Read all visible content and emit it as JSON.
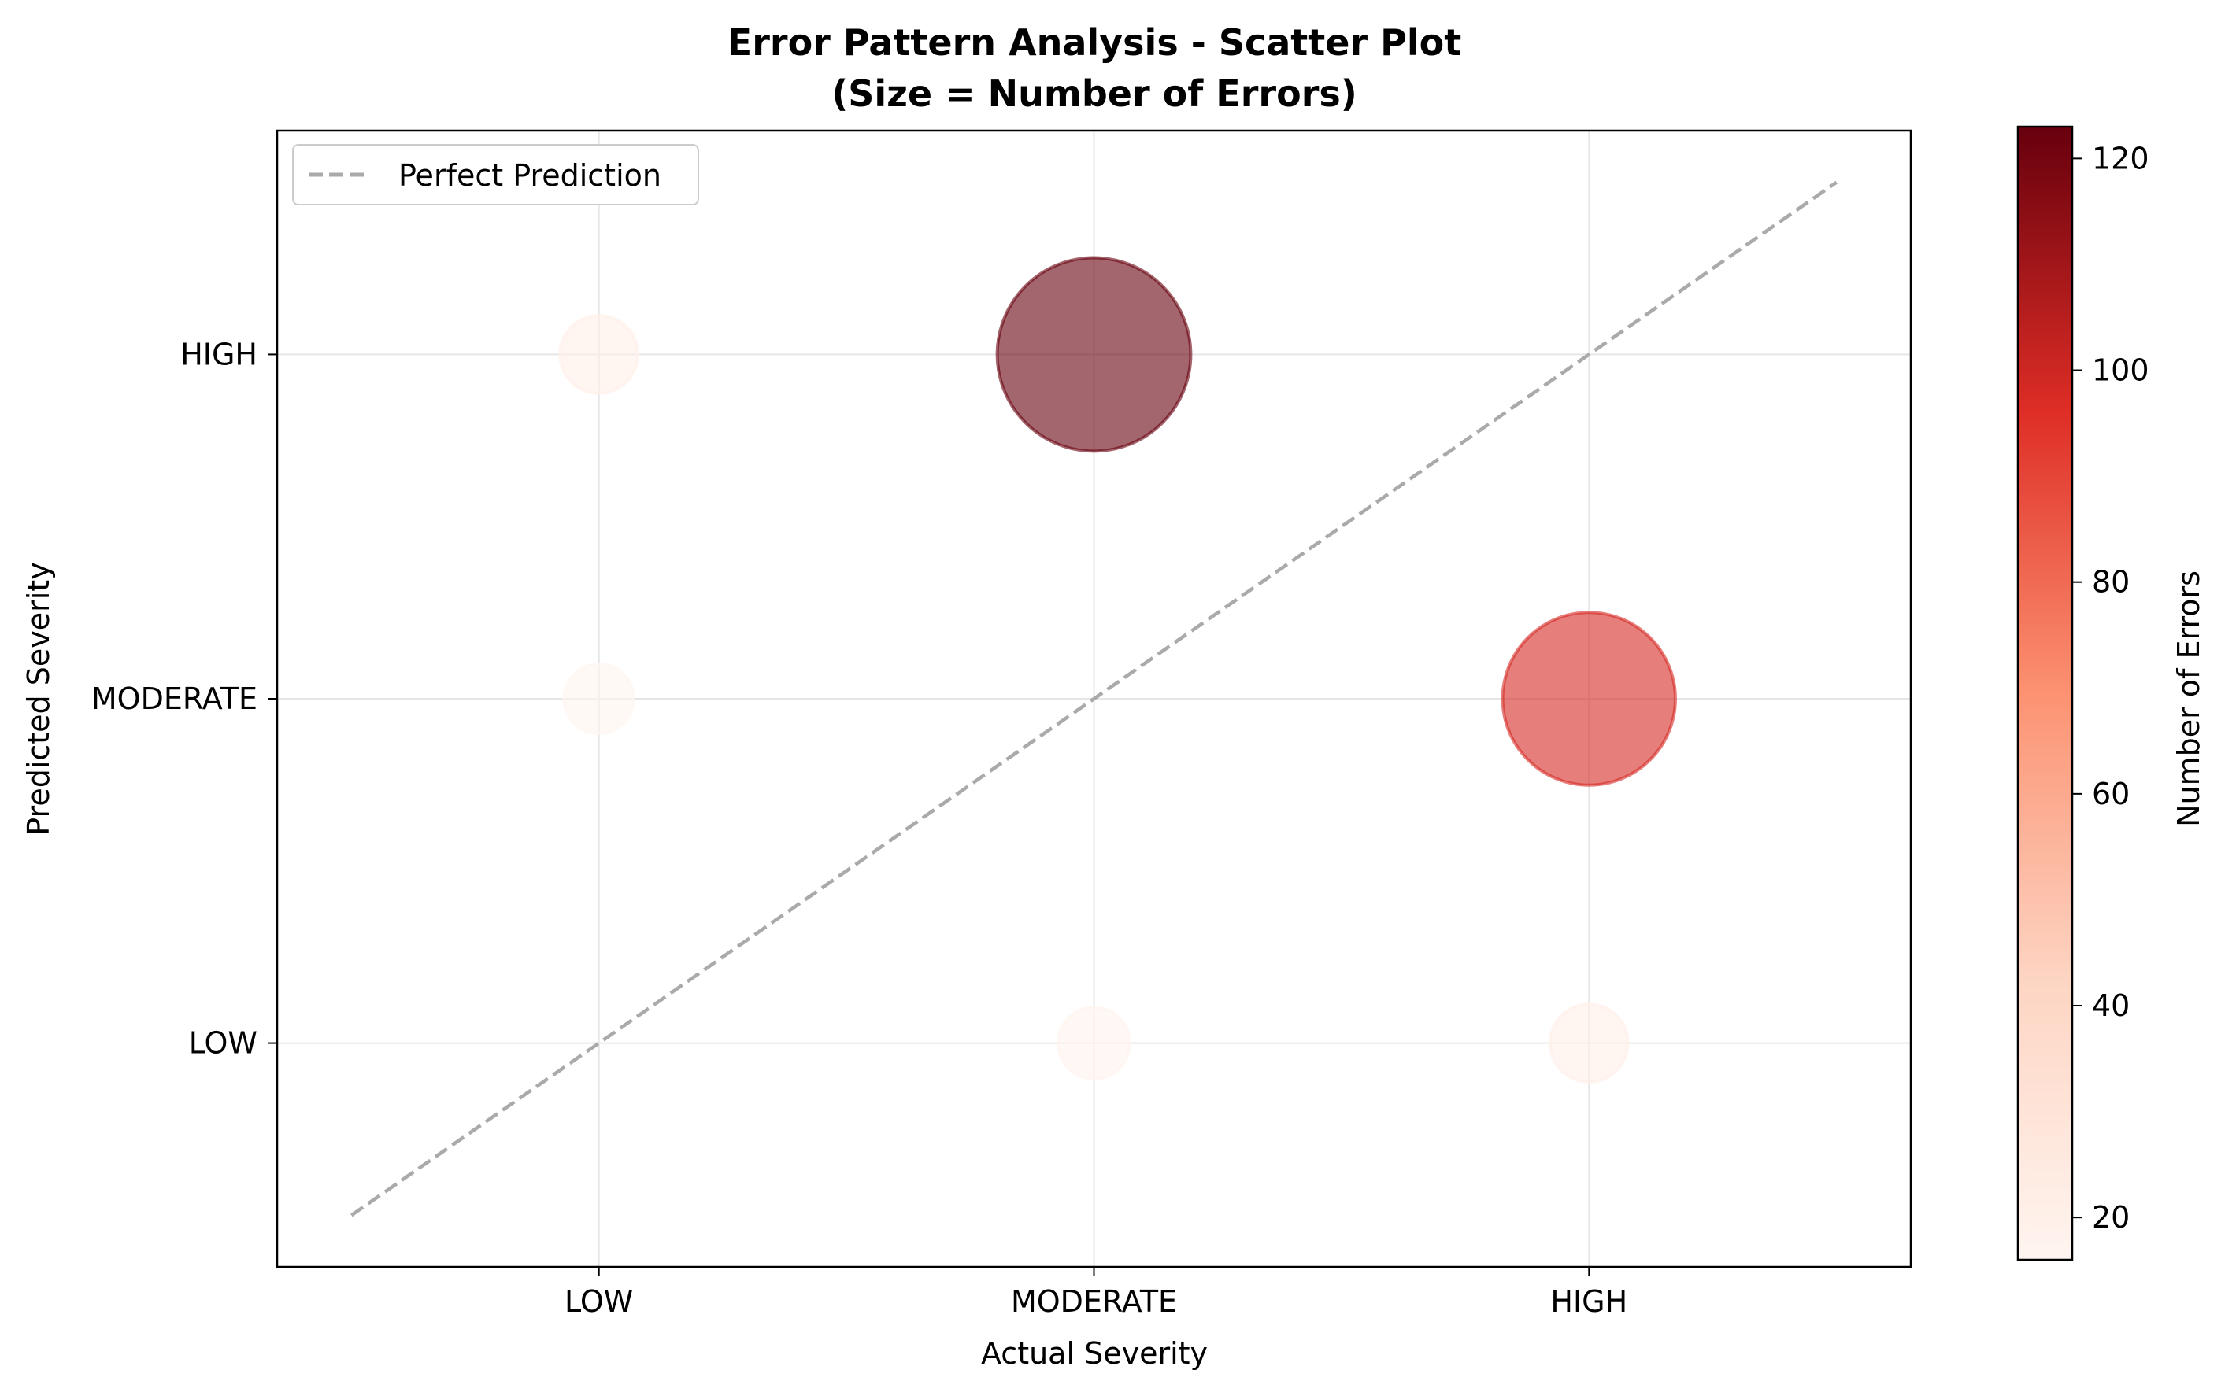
{
  "chart_data": {
    "type": "scatter",
    "title": "Error Pattern Analysis - Scatter Plot",
    "subtitle": "(Size = Number of Errors)",
    "xlabel": "Actual Severity",
    "ylabel": "Predicted Severity",
    "categories": [
      "LOW",
      "MODERATE",
      "HIGH"
    ],
    "x_tick_labels": [
      "LOW",
      "MODERATE",
      "HIGH"
    ],
    "y_tick_labels": [
      "LOW",
      "MODERATE",
      "HIGH"
    ],
    "xlim": [
      -0.65,
      2.65
    ],
    "ylim": [
      -0.65,
      2.65
    ],
    "grid": true,
    "legend": {
      "position": "top-left",
      "entries": [
        "Perfect Prediction"
      ]
    },
    "reference_line": {
      "name": "Perfect Prediction",
      "from": [
        -0.5,
        -0.5
      ],
      "to": [
        2.5,
        2.5
      ],
      "style": "dashed",
      "color": "#aaaaaa"
    },
    "points": [
      {
        "x": "LOW",
        "y": "HIGH",
        "errors": 20
      },
      {
        "x": "LOW",
        "y": "MODERATE",
        "errors": 16
      },
      {
        "x": "MODERATE",
        "y": "HIGH",
        "errors": 123
      },
      {
        "x": "MODERATE",
        "y": "LOW",
        "errors": 17
      },
      {
        "x": "HIGH",
        "y": "MODERATE",
        "errors": 98
      },
      {
        "x": "HIGH",
        "y": "LOW",
        "errors": 20
      }
    ],
    "colorbar": {
      "label": "Number of Errors",
      "min": 16,
      "max": 123,
      "ticks": [
        20,
        40,
        60,
        80,
        100,
        120
      ],
      "colormap": "Reds"
    }
  }
}
